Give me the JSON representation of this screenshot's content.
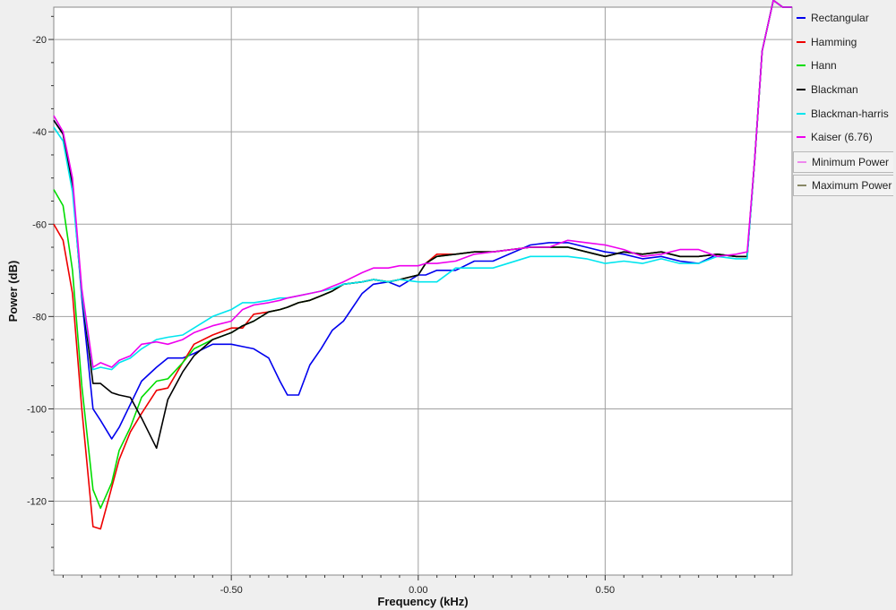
{
  "chart_data": {
    "type": "line",
    "xlabel": "Frequency (kHz)",
    "ylabel": "Power (dB)",
    "xlim": [
      -0.975,
      1.0
    ],
    "ylim": [
      -136,
      -13
    ],
    "xticks": [
      -0.5,
      0.0,
      0.5
    ],
    "xtick_labels": [
      "-0.50",
      "0.00",
      "0.50"
    ],
    "yticks": [
      -120,
      -100,
      -80,
      -60,
      -40,
      -20
    ],
    "ytick_labels": [
      "-120",
      "-100",
      "-80",
      "-60",
      "-40",
      "-20"
    ],
    "grid": true,
    "legend_position": "right",
    "series": [
      {
        "name": "Rectangular",
        "color": "#0000ee",
        "x": [
          -0.975,
          -0.95,
          -0.925,
          -0.9,
          -0.87,
          -0.85,
          -0.82,
          -0.8,
          -0.77,
          -0.74,
          -0.7,
          -0.67,
          -0.63,
          -0.6,
          -0.55,
          -0.5,
          -0.47,
          -0.44,
          -0.4,
          -0.37,
          -0.35,
          -0.32,
          -0.29,
          -0.26,
          -0.23,
          -0.2,
          -0.15,
          -0.12,
          -0.08,
          -0.05,
          0.0,
          0.02,
          0.05,
          0.1,
          0.15,
          0.2,
          0.3,
          0.35,
          0.4,
          0.45,
          0.5,
          0.55,
          0.6,
          0.65,
          0.7,
          0.75,
          0.8,
          0.85,
          0.88,
          0.9,
          0.92,
          0.95,
          0.975,
          1.0
        ],
        "values": [
          -37.5,
          -40.5,
          -51.5,
          -76,
          -100,
          -102.5,
          -106.5,
          -104,
          -99,
          -94,
          -91,
          -89,
          -89,
          -88,
          -86,
          -86,
          -86.5,
          -87,
          -89,
          -94,
          -97,
          -97,
          -90.5,
          -87,
          -83,
          -81,
          -75,
          -73,
          -72.5,
          -73.5,
          -71,
          -71,
          -70,
          -70,
          -68,
          -68,
          -64.5,
          -64,
          -64,
          -65,
          -66,
          -66.5,
          -67.5,
          -67,
          -68,
          -68.5,
          -66.5,
          -67,
          -67,
          -46,
          -22.5,
          -11.5,
          -13,
          -13
        ]
      },
      {
        "name": "Hamming",
        "color": "#ee0000",
        "x": [
          -0.975,
          -0.95,
          -0.925,
          -0.9,
          -0.87,
          -0.85,
          -0.82,
          -0.8,
          -0.77,
          -0.74,
          -0.7,
          -0.67,
          -0.63,
          -0.6,
          -0.55,
          -0.5,
          -0.47,
          -0.44,
          -0.4,
          -0.37,
          -0.35,
          -0.32,
          -0.29,
          -0.26,
          -0.23,
          -0.2,
          -0.15,
          -0.12,
          -0.08,
          -0.05,
          0.0,
          0.02,
          0.05,
          0.1,
          0.15,
          0.2,
          0.3,
          0.35,
          0.4,
          0.45,
          0.5,
          0.55,
          0.6,
          0.65,
          0.7,
          0.75,
          0.8,
          0.85,
          0.88,
          0.9,
          0.92,
          0.95,
          0.975,
          1.0
        ],
        "values": [
          -60,
          -63.5,
          -75,
          -100,
          -125.5,
          -126,
          -117,
          -111,
          -105,
          -101,
          -96,
          -95.5,
          -90,
          -86,
          -84,
          -82.5,
          -82.5,
          -79.5,
          -79,
          -78.5,
          -78,
          -77,
          -76.5,
          -75.5,
          -74.5,
          -73,
          -72.5,
          -72,
          -72.5,
          -72,
          -71,
          -68.5,
          -66.5,
          -66.5,
          -66,
          -66,
          -65,
          -65,
          -65,
          -66,
          -67,
          -66,
          -66.5,
          -66,
          -67,
          -67,
          -66.5,
          -67,
          -67,
          -46,
          -22.5,
          -11.5,
          -13,
          -13
        ]
      },
      {
        "name": "Hann",
        "color": "#00dd00",
        "x": [
          -0.975,
          -0.95,
          -0.925,
          -0.9,
          -0.87,
          -0.85,
          -0.82,
          -0.8,
          -0.77,
          -0.74,
          -0.7,
          -0.67,
          -0.63,
          -0.6,
          -0.55,
          -0.5,
          -0.47,
          -0.44,
          -0.4,
          -0.37,
          -0.35,
          -0.32,
          -0.29,
          -0.26,
          -0.23,
          -0.2,
          -0.15,
          -0.12,
          -0.08,
          -0.05,
          0.0,
          0.02,
          0.05,
          0.1,
          0.15,
          0.2,
          0.3,
          0.35,
          0.4,
          0.45,
          0.5,
          0.55,
          0.6,
          0.65,
          0.7,
          0.75,
          0.8,
          0.85,
          0.88,
          0.9,
          0.92,
          0.95,
          0.975,
          1.0
        ],
        "values": [
          -52.5,
          -56,
          -70,
          -95,
          -117.5,
          -121.5,
          -116,
          -109,
          -104,
          -97.5,
          -94,
          -93.5,
          -90,
          -87,
          -85,
          -83.5,
          -82,
          -81,
          -79,
          -78.5,
          -78,
          -77,
          -76.5,
          -75.5,
          -74.5,
          -73,
          -72.5,
          -72,
          -72.5,
          -72,
          -71,
          -68.5,
          -67,
          -66.5,
          -66,
          -66,
          -65,
          -65,
          -65,
          -66,
          -67,
          -66,
          -66.5,
          -66,
          -67,
          -67,
          -66.5,
          -67,
          -67,
          -46,
          -22.5,
          -11.5,
          -13,
          -13
        ]
      },
      {
        "name": "Blackman",
        "color": "#000000",
        "x": [
          -0.975,
          -0.95,
          -0.925,
          -0.9,
          -0.87,
          -0.85,
          -0.82,
          -0.8,
          -0.77,
          -0.74,
          -0.7,
          -0.67,
          -0.63,
          -0.6,
          -0.55,
          -0.5,
          -0.47,
          -0.44,
          -0.4,
          -0.37,
          -0.35,
          -0.32,
          -0.29,
          -0.26,
          -0.23,
          -0.2,
          -0.15,
          -0.12,
          -0.08,
          -0.05,
          0.0,
          0.02,
          0.05,
          0.1,
          0.15,
          0.2,
          0.3,
          0.35,
          0.4,
          0.45,
          0.5,
          0.55,
          0.6,
          0.65,
          0.7,
          0.75,
          0.8,
          0.85,
          0.88,
          0.9,
          0.92,
          0.95,
          0.975,
          1.0
        ],
        "values": [
          -37.5,
          -40.5,
          -52,
          -75,
          -94.5,
          -94.5,
          -96.5,
          -97,
          -97.5,
          -102,
          -108.5,
          -98,
          -92,
          -88.5,
          -85,
          -83.5,
          -82,
          -81,
          -79,
          -78.5,
          -78,
          -77,
          -76.5,
          -75.5,
          -74.5,
          -73,
          -72.5,
          -72,
          -72.5,
          -72,
          -71,
          -68.5,
          -67,
          -66.5,
          -66,
          -66,
          -65,
          -65,
          -65,
          -66,
          -67,
          -66,
          -66.5,
          -66,
          -67,
          -67,
          -66.5,
          -67,
          -67,
          -46,
          -22.5,
          -11.5,
          -13,
          -13
        ]
      },
      {
        "name": "Blackman-harris",
        "color": "#00e5ee",
        "x": [
          -0.975,
          -0.95,
          -0.925,
          -0.9,
          -0.87,
          -0.85,
          -0.82,
          -0.8,
          -0.77,
          -0.74,
          -0.7,
          -0.67,
          -0.63,
          -0.6,
          -0.55,
          -0.5,
          -0.47,
          -0.44,
          -0.4,
          -0.37,
          -0.35,
          -0.32,
          -0.29,
          -0.26,
          -0.23,
          -0.2,
          -0.15,
          -0.12,
          -0.08,
          -0.05,
          0.0,
          0.02,
          0.05,
          0.1,
          0.15,
          0.2,
          0.3,
          0.35,
          0.4,
          0.45,
          0.5,
          0.55,
          0.6,
          0.65,
          0.7,
          0.75,
          0.8,
          0.85,
          0.88,
          0.9,
          0.92,
          0.95,
          0.975,
          1.0
        ],
        "values": [
          -39,
          -42,
          -53,
          -75,
          -91.5,
          -91,
          -91.5,
          -90,
          -89,
          -87,
          -85,
          -84.5,
          -84,
          -82.5,
          -80,
          -78.5,
          -77,
          -77,
          -76.5,
          -76,
          -76,
          -75.5,
          -75,
          -74.5,
          -74,
          -73,
          -72.5,
          -72,
          -72.5,
          -72,
          -72.5,
          -72.5,
          -72.5,
          -69.5,
          -69.5,
          -69.5,
          -67,
          -67,
          -67,
          -67.5,
          -68.5,
          -68,
          -68.5,
          -67.5,
          -68.5,
          -68.5,
          -67,
          -67.5,
          -67.5,
          -46,
          -22.5,
          -11.5,
          -13,
          -13
        ]
      },
      {
        "name": "Kaiser (6.76)",
        "color": "#ee00ee",
        "x": [
          -0.975,
          -0.95,
          -0.925,
          -0.9,
          -0.87,
          -0.85,
          -0.82,
          -0.8,
          -0.77,
          -0.74,
          -0.7,
          -0.67,
          -0.63,
          -0.6,
          -0.55,
          -0.5,
          -0.47,
          -0.44,
          -0.4,
          -0.37,
          -0.35,
          -0.32,
          -0.29,
          -0.26,
          -0.23,
          -0.2,
          -0.15,
          -0.12,
          -0.08,
          -0.05,
          0.0,
          0.02,
          0.05,
          0.1,
          0.15,
          0.2,
          0.3,
          0.35,
          0.4,
          0.45,
          0.5,
          0.55,
          0.6,
          0.65,
          0.7,
          0.75,
          0.8,
          0.85,
          0.88,
          0.9,
          0.92,
          0.95,
          0.975,
          1.0
        ],
        "values": [
          -36.5,
          -40,
          -50,
          -74,
          -91,
          -90,
          -91,
          -89.5,
          -88.5,
          -86,
          -85.5,
          -86,
          -85,
          -83.5,
          -82,
          -81,
          -78.5,
          -77.5,
          -77,
          -76.5,
          -76,
          -75.5,
          -75,
          -74.5,
          -73.5,
          -72.5,
          -70.5,
          -69.5,
          -69.5,
          -69,
          -69,
          -68.5,
          -68.5,
          -68,
          -66.5,
          -66,
          -65,
          -65,
          -63.5,
          -64,
          -64.5,
          -65.5,
          -67,
          -66.5,
          -65.5,
          -65.5,
          -67,
          -66.5,
          -66,
          -46,
          -22.5,
          -11.5,
          -13,
          -13
        ]
      }
    ],
    "legend_extra": [
      {
        "name": "Minimum Power",
        "color": "#ee88ee"
      },
      {
        "name": "Maximum Power",
        "color": "#888866"
      }
    ]
  }
}
